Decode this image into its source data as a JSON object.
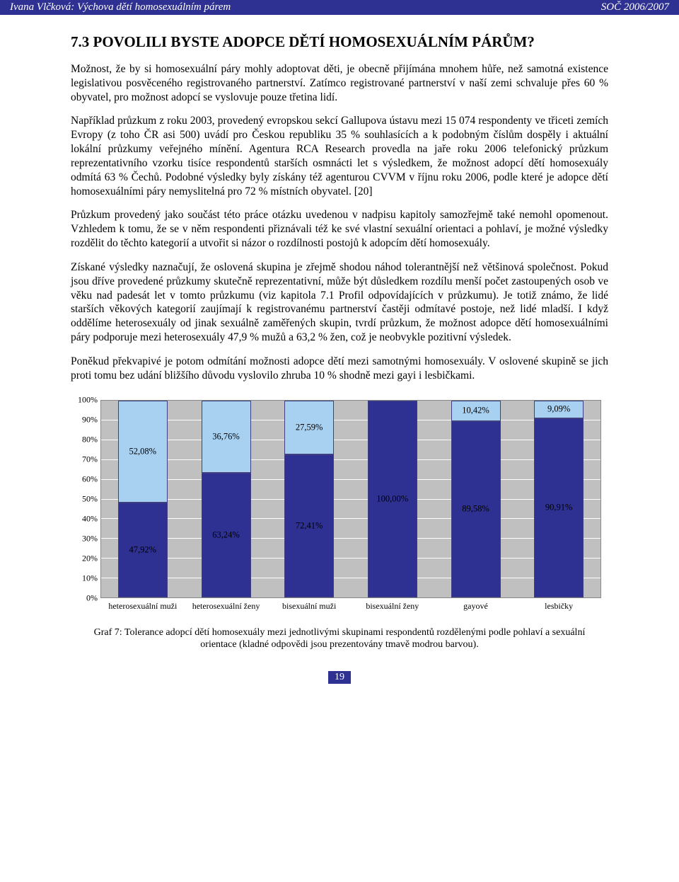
{
  "header": {
    "left": "Ivana Vlčková: Výchova dětí homosexuálním párem",
    "right": "SOČ 2006/2007"
  },
  "section_title": "7.3 POVOLILI BYSTE ADOPCE DĚTÍ HOMOSEXUÁLNÍM PÁRŮM?",
  "paragraphs": [
    "Možnost, že by si homosexuální páry mohly adoptovat děti, je obecně přijímána mnohem hůře, než samotná existence legislativou posvěceného registrovaného partnerství. Zatímco registrované partnerství v naší zemi schvaluje přes 60 % obyvatel, pro možnost adopcí se vyslovuje pouze třetina lidí.",
    "Například průzkum z roku 2003, provedený evropskou sekcí Gallupova ústavu mezi 15 074 respondenty ve třiceti zemích Evropy (z toho ČR asi 500) uvádí pro Českou republiku 35 % souhlasících a k podobným číslům dospěly i aktuální lokální průzkumy veřejného mínění. Agentura RCA Research provedla na jaře roku 2006 telefonický průzkum reprezentativního vzorku tisíce respondentů starších osmnácti let s výsledkem, že možnost adopcí dětí homosexuály odmítá 63 % Čechů. Podobné výsledky byly získány též agenturou CVVM v říjnu roku 2006, podle které je adopce dětí homosexuálními páry nemyslitelná pro 72 % místních obyvatel. [20]",
    "Průzkum provedený jako součást této práce otázku uvedenou v nadpisu kapitoly samozřejmě také nemohl opomenout. Vzhledem k tomu, že se v něm respondenti přiznávali též ke své vlastní sexuální orientaci a pohlaví, je možné výsledky rozdělit do těchto kategorií a utvořit si názor o rozdílnosti postojů k adopcím dětí homosexuály.",
    "Získané výsledky naznačují, že oslovená skupina je zřejmě shodou náhod tolerantnější než většinová společnost. Pokud jsou dříve provedené průzkumy skutečně reprezentativní, může být důsledkem rozdílu menší počet zastoupených osob ve věku nad padesát let v tomto průzkumu (viz kapitola 7.1 Profil odpovídajících v průzkumu). Je totiž známo, že lidé starších věkových kategorií zaujímají k registrovanému partnerství častěji odmítavé postoje, než lidé mladší. I když oddělíme heterosexuály od jinak sexuálně zaměřených skupin, tvrdí průzkum, že možnost adopce dětí homosexuálními páry podporuje mezi heterosexuály 47,9 % mužů a 63,2 % žen, což je neobvykle pozitivní výsledek.",
    "Poněkud překvapivé je potom odmítání možnosti adopce dětí mezi samotnými homosexuály. V oslovené skupině se jich proti tomu bez udání bližšího důvodu vyslovilo zhruba 10 % shodně mezi gayi i lesbičkami."
  ],
  "chart": {
    "type": "stacked-bar",
    "ylim": [
      0,
      100
    ],
    "ytick_step": 10,
    "ytick_labels": [
      "0%",
      "10%",
      "20%",
      "30%",
      "40%",
      "50%",
      "60%",
      "70%",
      "80%",
      "90%",
      "100%"
    ],
    "plot_bg": "#c0c0c0",
    "grid_color": "#ffffff",
    "lower_color": "#2e3192",
    "upper_color": "#a8d0f0",
    "border_color": "#404080",
    "label_fontsize": 12,
    "categories": [
      {
        "name": "heterosexuální muži",
        "lower": 47.92,
        "upper": 52.08,
        "lower_label": "47,92%",
        "upper_label": "52,08%"
      },
      {
        "name": "heterosexuální ženy",
        "lower": 63.24,
        "upper": 36.76,
        "lower_label": "63,24%",
        "upper_label": "36,76%"
      },
      {
        "name": "bisexuální muži",
        "lower": 72.41,
        "upper": 27.59,
        "lower_label": "72,41%",
        "upper_label": "27,59%"
      },
      {
        "name": "bisexuální ženy",
        "lower": 100.0,
        "upper": 0.0,
        "lower_label": "100,00%",
        "upper_label": ""
      },
      {
        "name": "gayové",
        "lower": 89.58,
        "upper": 10.42,
        "lower_label": "89,58%",
        "upper_label": "10,42%"
      },
      {
        "name": "lesbičky",
        "lower": 90.91,
        "upper": 9.09,
        "lower_label": "90,91%",
        "upper_label": "9,09%"
      }
    ]
  },
  "caption": "Graf 7: Tolerance adopcí dětí homosexuály mezi jednotlivými skupinami respondentů rozdělenými podle pohlaví a sexuální orientace (kladné odpovědi jsou prezentovány tmavě modrou barvou).",
  "page_number": "19"
}
